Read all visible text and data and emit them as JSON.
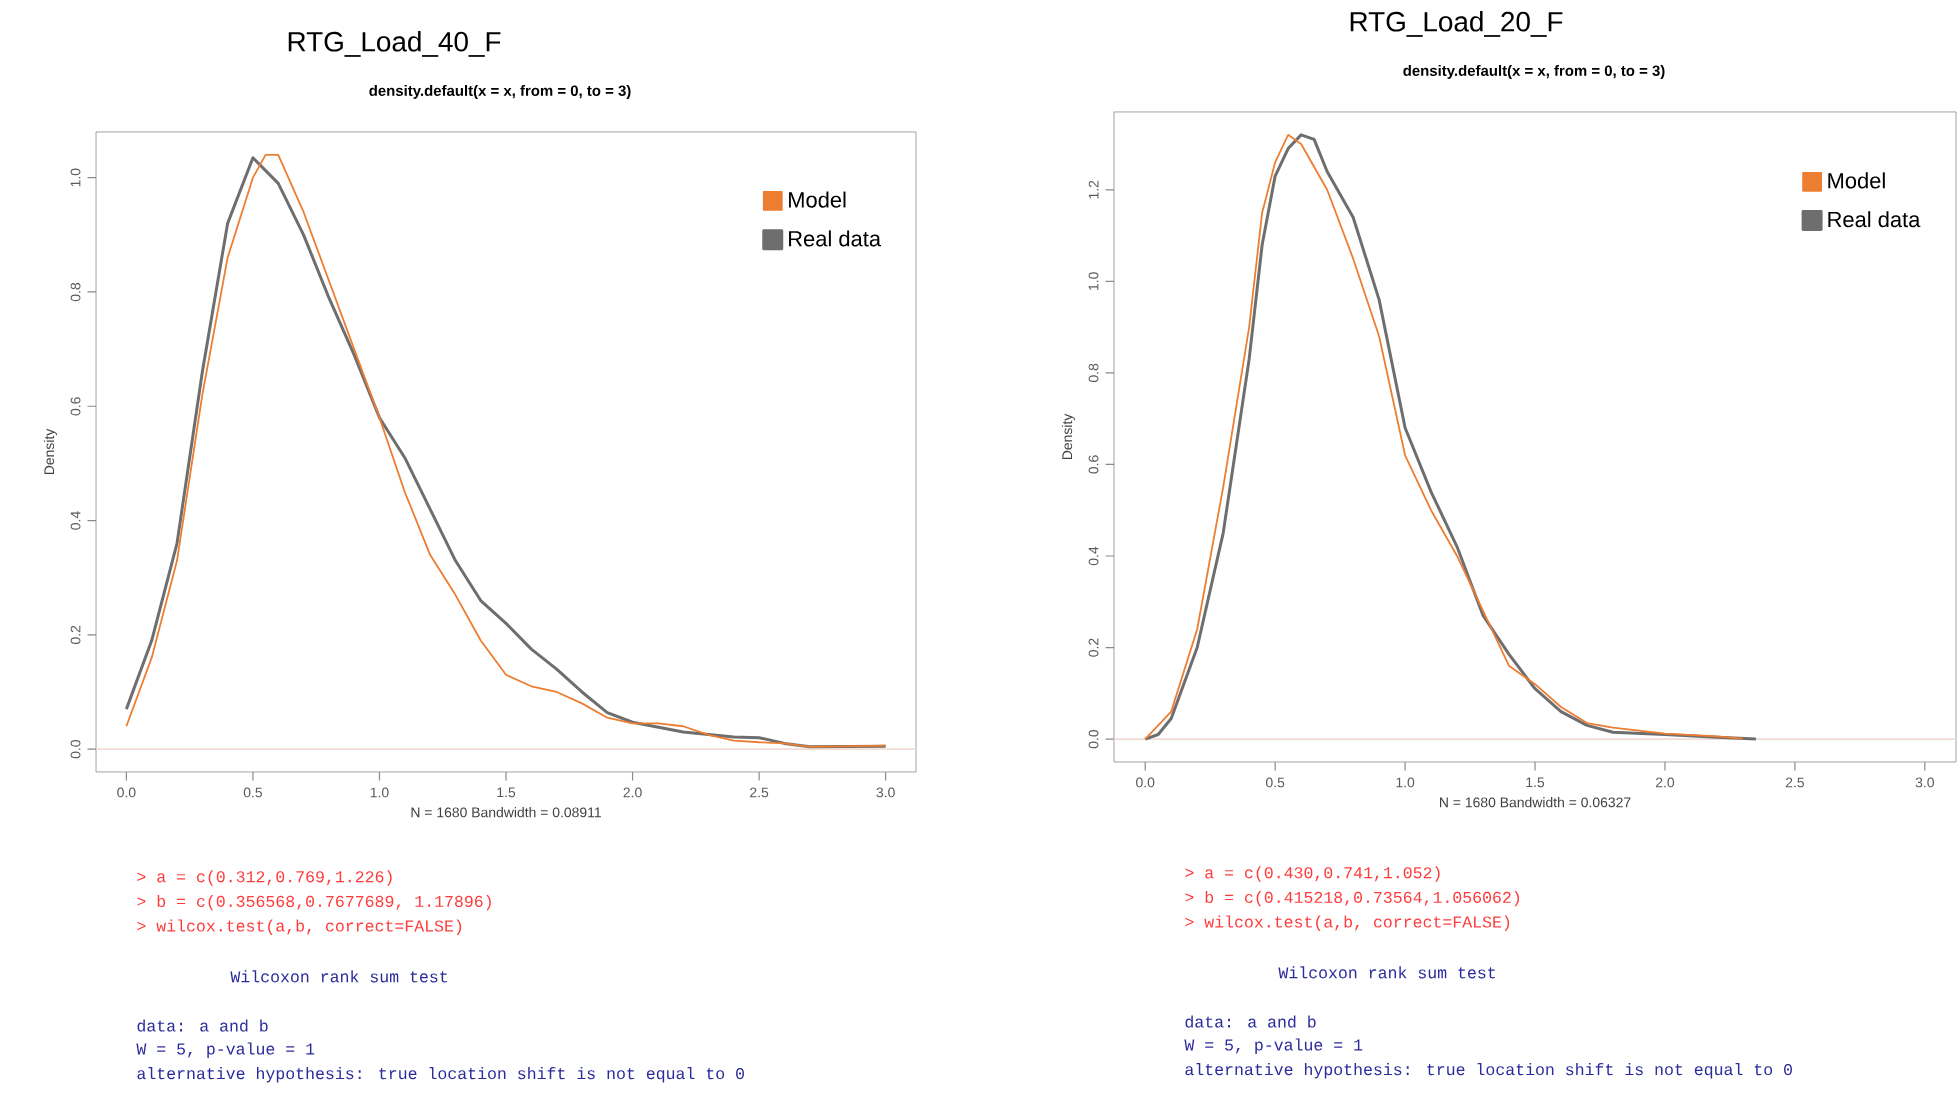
{
  "chart_data": [
    {
      "type": "line",
      "title": "RTG_Load_40_F",
      "subtitle": "density.default(x = x, from = 0, to = 3)",
      "xlabel": "N = 1680   Bandwidth = 0.08911",
      "ylabel": "Density",
      "xlim": [
        -0.12,
        3.12
      ],
      "ylim": [
        -0.04,
        1.08
      ],
      "xticks": [
        {
          "value": 0,
          "label": "0.0"
        },
        {
          "value": 0.5,
          "label": "0.5"
        },
        {
          "value": 1,
          "label": "1.0"
        },
        {
          "value": 1.5,
          "label": "1.5"
        },
        {
          "value": 2,
          "label": "2.0"
        },
        {
          "value": 2.5,
          "label": "2.5"
        },
        {
          "value": 3,
          "label": "3.0"
        }
      ],
      "yticks": [
        {
          "value": 0,
          "label": "0.0"
        },
        {
          "value": 0.2,
          "label": "0.2"
        },
        {
          "value": 0.4,
          "label": "0.4"
        },
        {
          "value": 0.6,
          "label": "0.6"
        },
        {
          "value": 0.8,
          "label": "0.8"
        },
        {
          "value": 1,
          "label": "1.0"
        }
      ],
      "legend": "top right",
      "ref_lines": [
        {
          "axis": "y",
          "value": 0,
          "color": "#f0dcd6"
        }
      ],
      "series": [
        {
          "name": "Real data",
          "color": "#6e6e6e",
          "x": [
            0,
            0.1,
            0.2,
            0.25,
            0.3,
            0.4,
            0.5,
            0.6,
            0.7,
            0.8,
            0.9,
            1.0,
            1.1,
            1.2,
            1.3,
            1.4,
            1.5,
            1.6,
            1.7,
            1.8,
            1.9,
            2.0,
            2.2,
            2.4,
            2.5,
            2.6,
            2.7,
            3.0
          ],
          "values": [
            0.07,
            0.19,
            0.36,
            0.51,
            0.66,
            0.92,
            1.035,
            0.99,
            0.9,
            0.79,
            0.69,
            0.58,
            0.51,
            0.42,
            0.33,
            0.26,
            0.22,
            0.175,
            0.14,
            0.1,
            0.064,
            0.047,
            0.03,
            0.021,
            0.02,
            0.01,
            0.004,
            0.005
          ]
        },
        {
          "name": "Model",
          "color": "#ed7d31",
          "x": [
            0,
            0.1,
            0.2,
            0.3,
            0.4,
            0.5,
            0.55,
            0.6,
            0.7,
            0.8,
            0.9,
            1.0,
            1.1,
            1.2,
            1.3,
            1.4,
            1.5,
            1.6,
            1.7,
            1.8,
            1.9,
            2.0,
            2.1,
            2.2,
            2.3,
            2.4,
            2.5,
            2.6,
            2.7,
            3.0
          ],
          "values": [
            0.04,
            0.16,
            0.33,
            0.62,
            0.86,
            1.0,
            1.04,
            1.04,
            0.94,
            0.82,
            0.7,
            0.58,
            0.45,
            0.34,
            0.27,
            0.19,
            0.13,
            0.11,
            0.1,
            0.08,
            0.055,
            0.045,
            0.045,
            0.04,
            0.025,
            0.015,
            0.012,
            0.01,
            0.004,
            0.006
          ]
        }
      ],
      "annotations": [
        "> a = c(0.312,0.769,1.226)",
        "> b = c(0.356568,0.7677689, 1.17896)",
        "> wilcox.test(a,b, correct=FALSE)",
        "Wilcoxon rank sum test",
        "data:  a and b",
        "W = 5, p-value = 1",
        "alternative hypothesis: true location shift is not equal to 0"
      ]
    },
    {
      "type": "line",
      "title": "RTG_Load_20_F",
      "subtitle": "density.default(x = x, from = 0, to = 3)",
      "xlabel": "N = 1680   Bandwidth = 0.06327",
      "ylabel": "Density",
      "xlim": [
        -0.12,
        3.12
      ],
      "ylim": [
        -0.05,
        1.37
      ],
      "xticks": [
        {
          "value": 0,
          "label": "0.0"
        },
        {
          "value": 0.5,
          "label": "0.5"
        },
        {
          "value": 1,
          "label": "1.0"
        },
        {
          "value": 1.5,
          "label": "1.5"
        },
        {
          "value": 2,
          "label": "2.0"
        },
        {
          "value": 2.5,
          "label": "2.5"
        },
        {
          "value": 3,
          "label": "3.0"
        }
      ],
      "yticks": [
        {
          "value": 0,
          "label": "0.0"
        },
        {
          "value": 0.2,
          "label": "0.2"
        },
        {
          "value": 0.4,
          "label": "0.4"
        },
        {
          "value": 0.6,
          "label": "0.6"
        },
        {
          "value": 0.8,
          "label": "0.8"
        },
        {
          "value": 1,
          "label": "1.0"
        },
        {
          "value": 1.2,
          "label": "1.2"
        }
      ],
      "legend": "top right",
      "ref_lines": [
        {
          "axis": "y",
          "value": 0,
          "color": "#f0dcd6"
        }
      ],
      "series": [
        {
          "name": "Real data",
          "color": "#6e6e6e",
          "x": [
            0,
            0.05,
            0.1,
            0.2,
            0.3,
            0.4,
            0.45,
            0.5,
            0.55,
            0.6,
            0.65,
            0.7,
            0.8,
            0.9,
            1.0,
            1.1,
            1.2,
            1.3,
            1.4,
            1.5,
            1.6,
            1.7,
            1.8,
            2.0,
            2.2,
            2.35
          ],
          "values": [
            0.0,
            0.01,
            0.045,
            0.2,
            0.45,
            0.83,
            1.08,
            1.23,
            1.29,
            1.32,
            1.31,
            1.24,
            1.14,
            0.96,
            0.68,
            0.54,
            0.42,
            0.27,
            0.185,
            0.11,
            0.06,
            0.03,
            0.015,
            0.01,
            0.004,
            0.0
          ]
        },
        {
          "name": "Model",
          "color": "#ed7d31",
          "x": [
            0,
            0.1,
            0.2,
            0.3,
            0.4,
            0.45,
            0.5,
            0.55,
            0.6,
            0.7,
            0.8,
            0.9,
            1.0,
            1.1,
            1.2,
            1.3,
            1.4,
            1.5,
            1.6,
            1.7,
            1.8,
            2.0,
            2.2,
            2.3
          ],
          "values": [
            0.0,
            0.06,
            0.24,
            0.55,
            0.9,
            1.15,
            1.26,
            1.32,
            1.3,
            1.2,
            1.05,
            0.88,
            0.62,
            0.5,
            0.4,
            0.28,
            0.16,
            0.12,
            0.07,
            0.035,
            0.025,
            0.012,
            0.006,
            0.001
          ]
        }
      ],
      "annotations": [
        "> a = c(0.430,0.741,1.052)",
        "> b = c(0.415218,0.73564,1.056062)",
        "> wilcox.test(a,b, correct=FALSE)",
        "Wilcoxon rank sum test",
        "data:  a and b",
        "W = 5, p-value = 1",
        "alternative hypothesis: true location shift is not equal to 0"
      ]
    }
  ]
}
